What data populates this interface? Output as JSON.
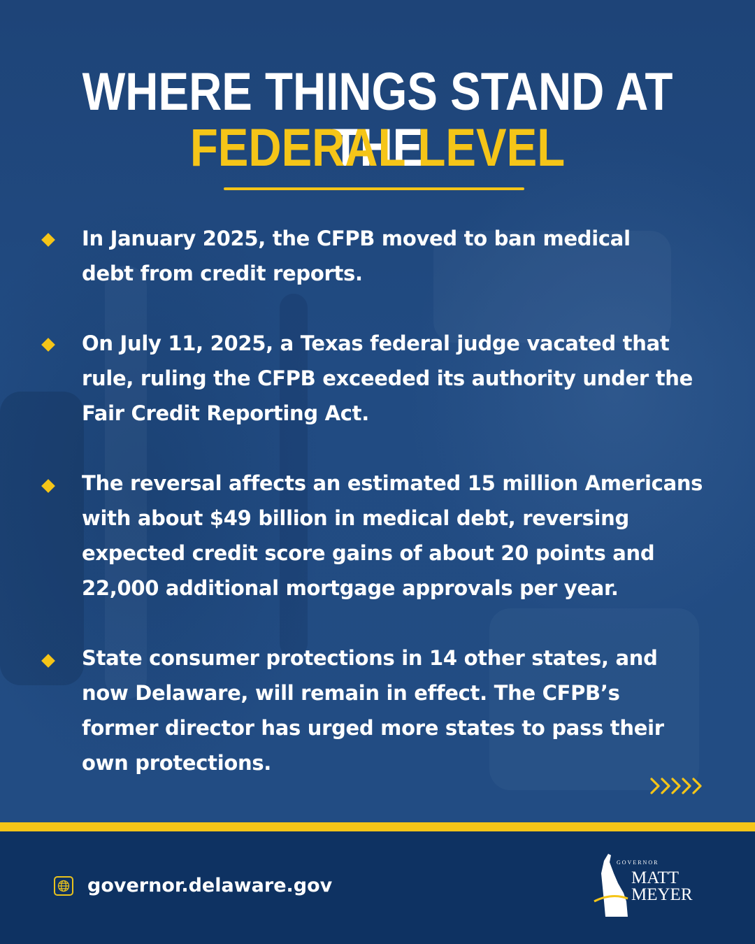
{
  "header": {
    "title_line1": "WHERE THINGS STAND AT THE",
    "title_line2": "FEDERAL LEVEL"
  },
  "bullets": [
    {
      "line1": "In January 2025, the CFPB moved to ban medical",
      "line2": "debt from credit reports."
    },
    {
      "line1": "On July 11, 2025, a Texas federal judge vacated that",
      "line2": "rule, ruling the CFPB exceeded its authority under the",
      "line3": "Fair Credit Reporting Act."
    },
    {
      "line1": "The reversal affects an estimated 15 million Americans",
      "line2": "with about $49 billion in medical debt, reversing",
      "line3": "expected credit score gains of about 20 points and",
      "line4": "22,000 additional mortgage approvals per year."
    },
    {
      "line1": "State consumer protections in 14 other states, and",
      "line2": "now Delaware, will remain in effect. The CFPB’s",
      "line3": "former director has urged more states to pass their",
      "line4": "own protections."
    }
  ],
  "next_indicator": "»»»",
  "footer": {
    "website": "governor.delaware.gov",
    "logo_governor": "GOVERNOR",
    "logo_first": "MATT",
    "logo_last": "MEYER"
  },
  "colors": {
    "background": "#1f4a80",
    "accent": "#f5c518",
    "footer": "#0e3262",
    "text": "#ffffff"
  },
  "icons": [
    "diamond-bullet-icon",
    "chevrons-right-icon",
    "globe-icon",
    "delaware-state-icon"
  ]
}
